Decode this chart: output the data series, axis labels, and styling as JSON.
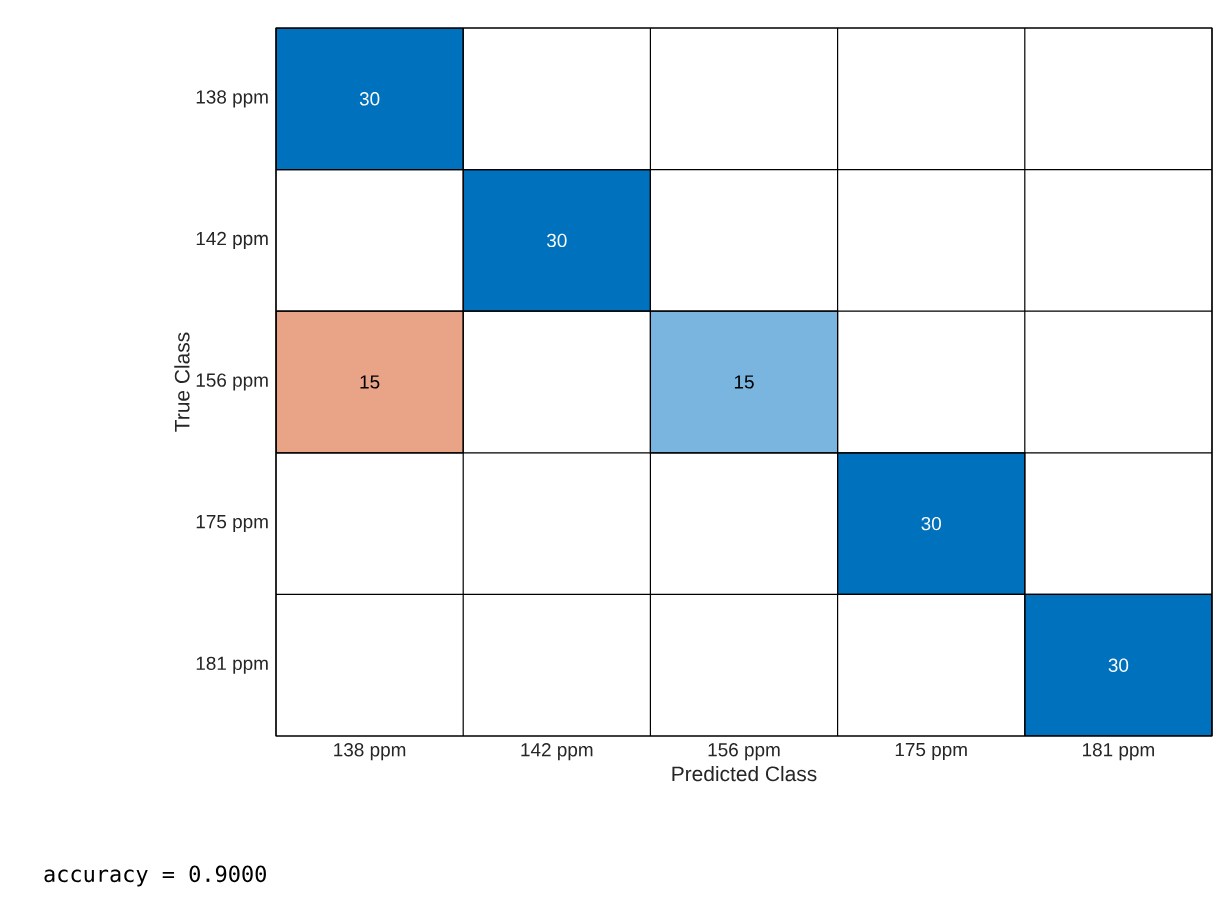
{
  "chart_data": {
    "type": "heatmap",
    "xlabel": "Predicted Class",
    "ylabel": "True Class",
    "categories": [
      "138 ppm",
      "142 ppm",
      "156 ppm",
      "175 ppm",
      "181 ppm"
    ],
    "y_categories": [
      "138 ppm",
      "142 ppm",
      "156 ppm",
      "175 ppm",
      "181 ppm"
    ],
    "cells": [
      [
        30,
        null,
        null,
        null,
        null
      ],
      [
        null,
        30,
        null,
        null,
        null
      ],
      [
        15,
        null,
        15,
        null,
        null
      ],
      [
        null,
        null,
        null,
        30,
        null
      ],
      [
        null,
        null,
        null,
        null,
        30
      ]
    ],
    "colors": [
      [
        "#0072bd",
        null,
        null,
        null,
        null
      ],
      [
        null,
        "#0072bd",
        null,
        null,
        null
      ],
      [
        "#e9a387",
        null,
        "#7ab5e0",
        null,
        null
      ],
      [
        null,
        null,
        null,
        "#0072bd",
        null
      ],
      [
        null,
        null,
        null,
        null,
        "#0072bd"
      ]
    ],
    "data_labels": true,
    "annotations": [
      "accuracy = 0.9000"
    ]
  }
}
